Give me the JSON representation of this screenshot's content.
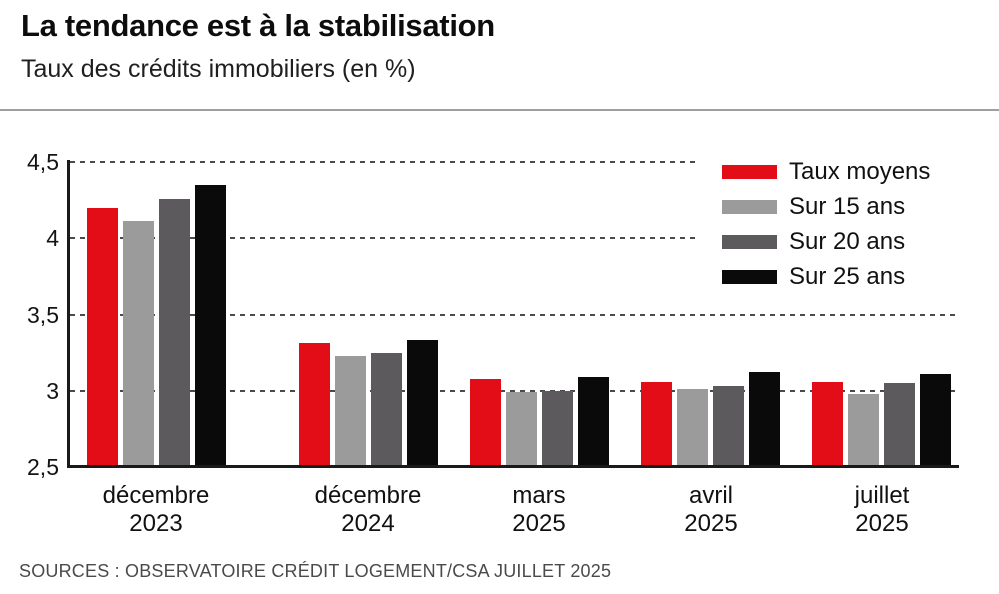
{
  "header": {
    "title": "La tendance est à la stabilisation",
    "subtitle": "Taux des crédits immobiliers (en %)"
  },
  "footer": {
    "source": "SOURCES : OBSERVATOIRE CRÉDIT LOGEMENT/CSA JUILLET 2025"
  },
  "colors": {
    "taux_moyens": "#e20d16",
    "sur_15_ans": "#9b9b9b",
    "sur_20_ans": "#5c5a5d",
    "sur_25_ans": "#0a0a0a",
    "axis": "#1a1a1a",
    "gridline": "#4a4a4a",
    "divider": "#9e9e9e",
    "background": "#ffffff"
  },
  "chart_data": {
    "type": "bar",
    "title": "La tendance est à la stabilisation",
    "subtitle": "Taux des crédits immobiliers (en %)",
    "categories": [
      [
        "décembre",
        "2023"
      ],
      [
        "décembre",
        "2024"
      ],
      [
        "mars",
        "2025"
      ],
      [
        "avril",
        "2025"
      ],
      [
        "juillet",
        "2025"
      ]
    ],
    "series": [
      {
        "name": "Taux moyens",
        "color": "#e20d16",
        "values": [
          4.2,
          3.31,
          3.08,
          3.06,
          3.06
        ]
      },
      {
        "name": "Sur 15 ans",
        "color": "#9b9b9b",
        "values": [
          4.11,
          3.23,
          2.99,
          3.01,
          2.98
        ]
      },
      {
        "name": "Sur 20 ans",
        "color": "#5c5a5d",
        "values": [
          4.26,
          3.25,
          3.0,
          3.03,
          3.05
        ]
      },
      {
        "name": "Sur 25 ans",
        "color": "#0a0a0a",
        "values": [
          4.35,
          3.33,
          3.09,
          3.12,
          3.11
        ]
      }
    ],
    "ylim": [
      2.5,
      4.5
    ],
    "yticks": [
      {
        "label": "4,5",
        "value": 4.5
      },
      {
        "label": "4",
        "value": 4.0
      },
      {
        "label": "3,5",
        "value": 3.5
      },
      {
        "label": "3",
        "value": 3.0
      },
      {
        "label": "2,5",
        "value": 2.5
      }
    ],
    "grid": "horizontal-dashed",
    "legend_position": "top-right",
    "source": "SOURCES : OBSERVATOIRE CRÉDIT LOGEMENT/CSA JUILLET 2025"
  }
}
